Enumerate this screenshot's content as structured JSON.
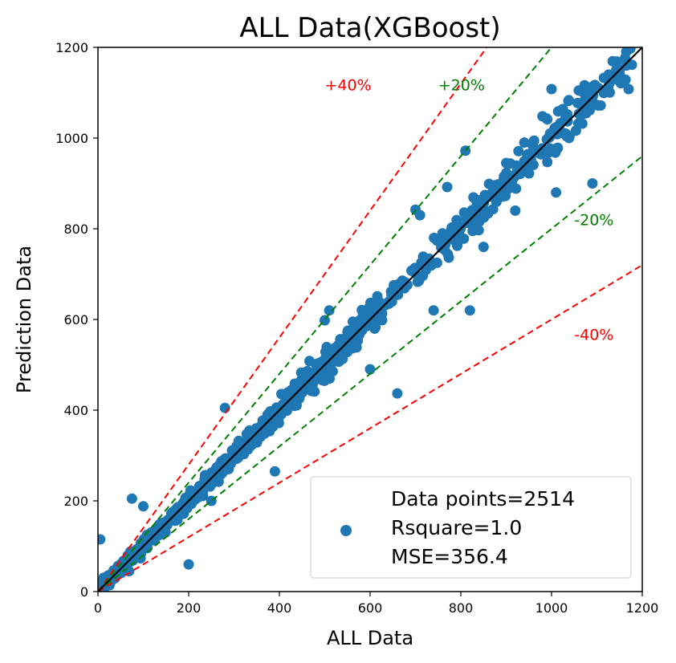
{
  "chart_data": {
    "type": "scatter",
    "title": "ALL Data(XGBoost)",
    "xlabel": "ALL Data",
    "ylabel": "Prediction Data",
    "xlim": [
      0,
      1200
    ],
    "ylim": [
      0,
      1200
    ],
    "xticks": [
      "0",
      "200",
      "400",
      "600",
      "800",
      "1000",
      "1200"
    ],
    "yticks": [
      "0",
      "200",
      "400",
      "600",
      "800",
      "1000",
      "1200"
    ],
    "grid": false,
    "legend": {
      "placement": "lower-right",
      "lines": [
        "Data points=2514",
        "Rsquare=1.0",
        "MSE=356.4"
      ]
    },
    "point_color": "#1f77b4",
    "reference_lines": [
      {
        "label": "+40%",
        "slope": 1.4,
        "color": "#ff0000",
        "style": "dashed",
        "label_at": [
          500,
          1105
        ]
      },
      {
        "label": "+20%",
        "slope": 1.2,
        "color": "#008000",
        "style": "dashed",
        "label_at": [
          750,
          1105
        ]
      },
      {
        "label": "-20%",
        "slope": 0.8,
        "color": "#008000",
        "style": "dashed",
        "label_at": [
          1050,
          808
        ]
      },
      {
        "label": "-40%",
        "slope": 0.6,
        "color": "#ff0000",
        "style": "dashed",
        "label_at": [
          1050,
          555
        ]
      },
      {
        "label": "",
        "slope": 1.0,
        "color": "#000000",
        "style": "solid"
      }
    ],
    "outliers": [
      [
        5,
        115
      ],
      [
        75,
        205
      ],
      [
        100,
        188
      ],
      [
        200,
        60
      ],
      [
        250,
        200
      ],
      [
        280,
        405
      ],
      [
        390,
        265
      ],
      [
        500,
        598
      ],
      [
        510,
        620
      ],
      [
        600,
        490
      ],
      [
        660,
        437
      ],
      [
        700,
        842
      ],
      [
        710,
        830
      ],
      [
        740,
        620
      ],
      [
        770,
        892
      ],
      [
        810,
        972
      ],
      [
        820,
        620
      ],
      [
        850,
        760
      ],
      [
        850,
        835
      ],
      [
        900,
        945
      ],
      [
        920,
        840
      ],
      [
        940,
        990
      ],
      [
        980,
        1048
      ],
      [
        1000,
        1108
      ],
      [
        1010,
        880
      ],
      [
        1060,
        1105
      ],
      [
        1090,
        900
      ],
      [
        1170,
        1108
      ],
      [
        1150,
        1150
      ],
      [
        1165,
        1160
      ]
    ]
  }
}
